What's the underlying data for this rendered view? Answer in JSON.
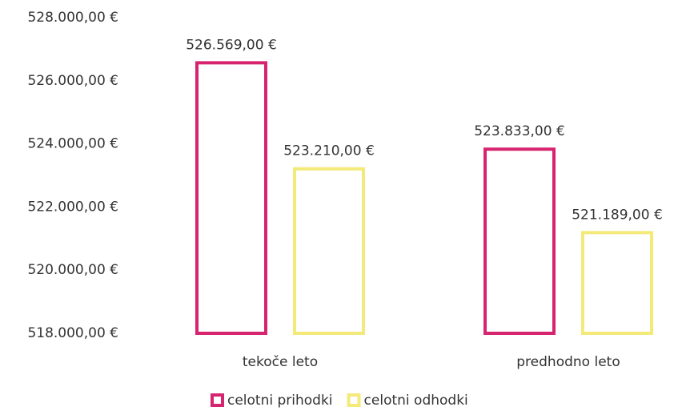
{
  "chart_data": {
    "type": "bar",
    "categories": [
      "tekoče leto",
      "predhodno leto"
    ],
    "series": [
      {
        "name": "celotni prihodki",
        "color": "#d6246e",
        "values": [
          526569,
          523833
        ],
        "value_labels": [
          "526.569,00 €",
          "523.833,00 €"
        ]
      },
      {
        "name": "celotni odhodki",
        "color": "#f3ea7a",
        "values": [
          523210,
          521189
        ],
        "value_labels": [
          "523.210,00 €",
          "521.189,00 €"
        ]
      }
    ],
    "ylim": [
      518000,
      528000
    ],
    "yticks": [
      {
        "value": 518000,
        "label": "518.000,00 €"
      },
      {
        "value": 520000,
        "label": "520.000,00 €"
      },
      {
        "value": 522000,
        "label": "522.000,00 €"
      },
      {
        "value": 524000,
        "label": "524.000,00 €"
      },
      {
        "value": 526000,
        "label": "526.000,00 €"
      },
      {
        "value": 528000,
        "label": "528.000,00 €"
      }
    ],
    "grid": false,
    "legend": "bottom"
  }
}
